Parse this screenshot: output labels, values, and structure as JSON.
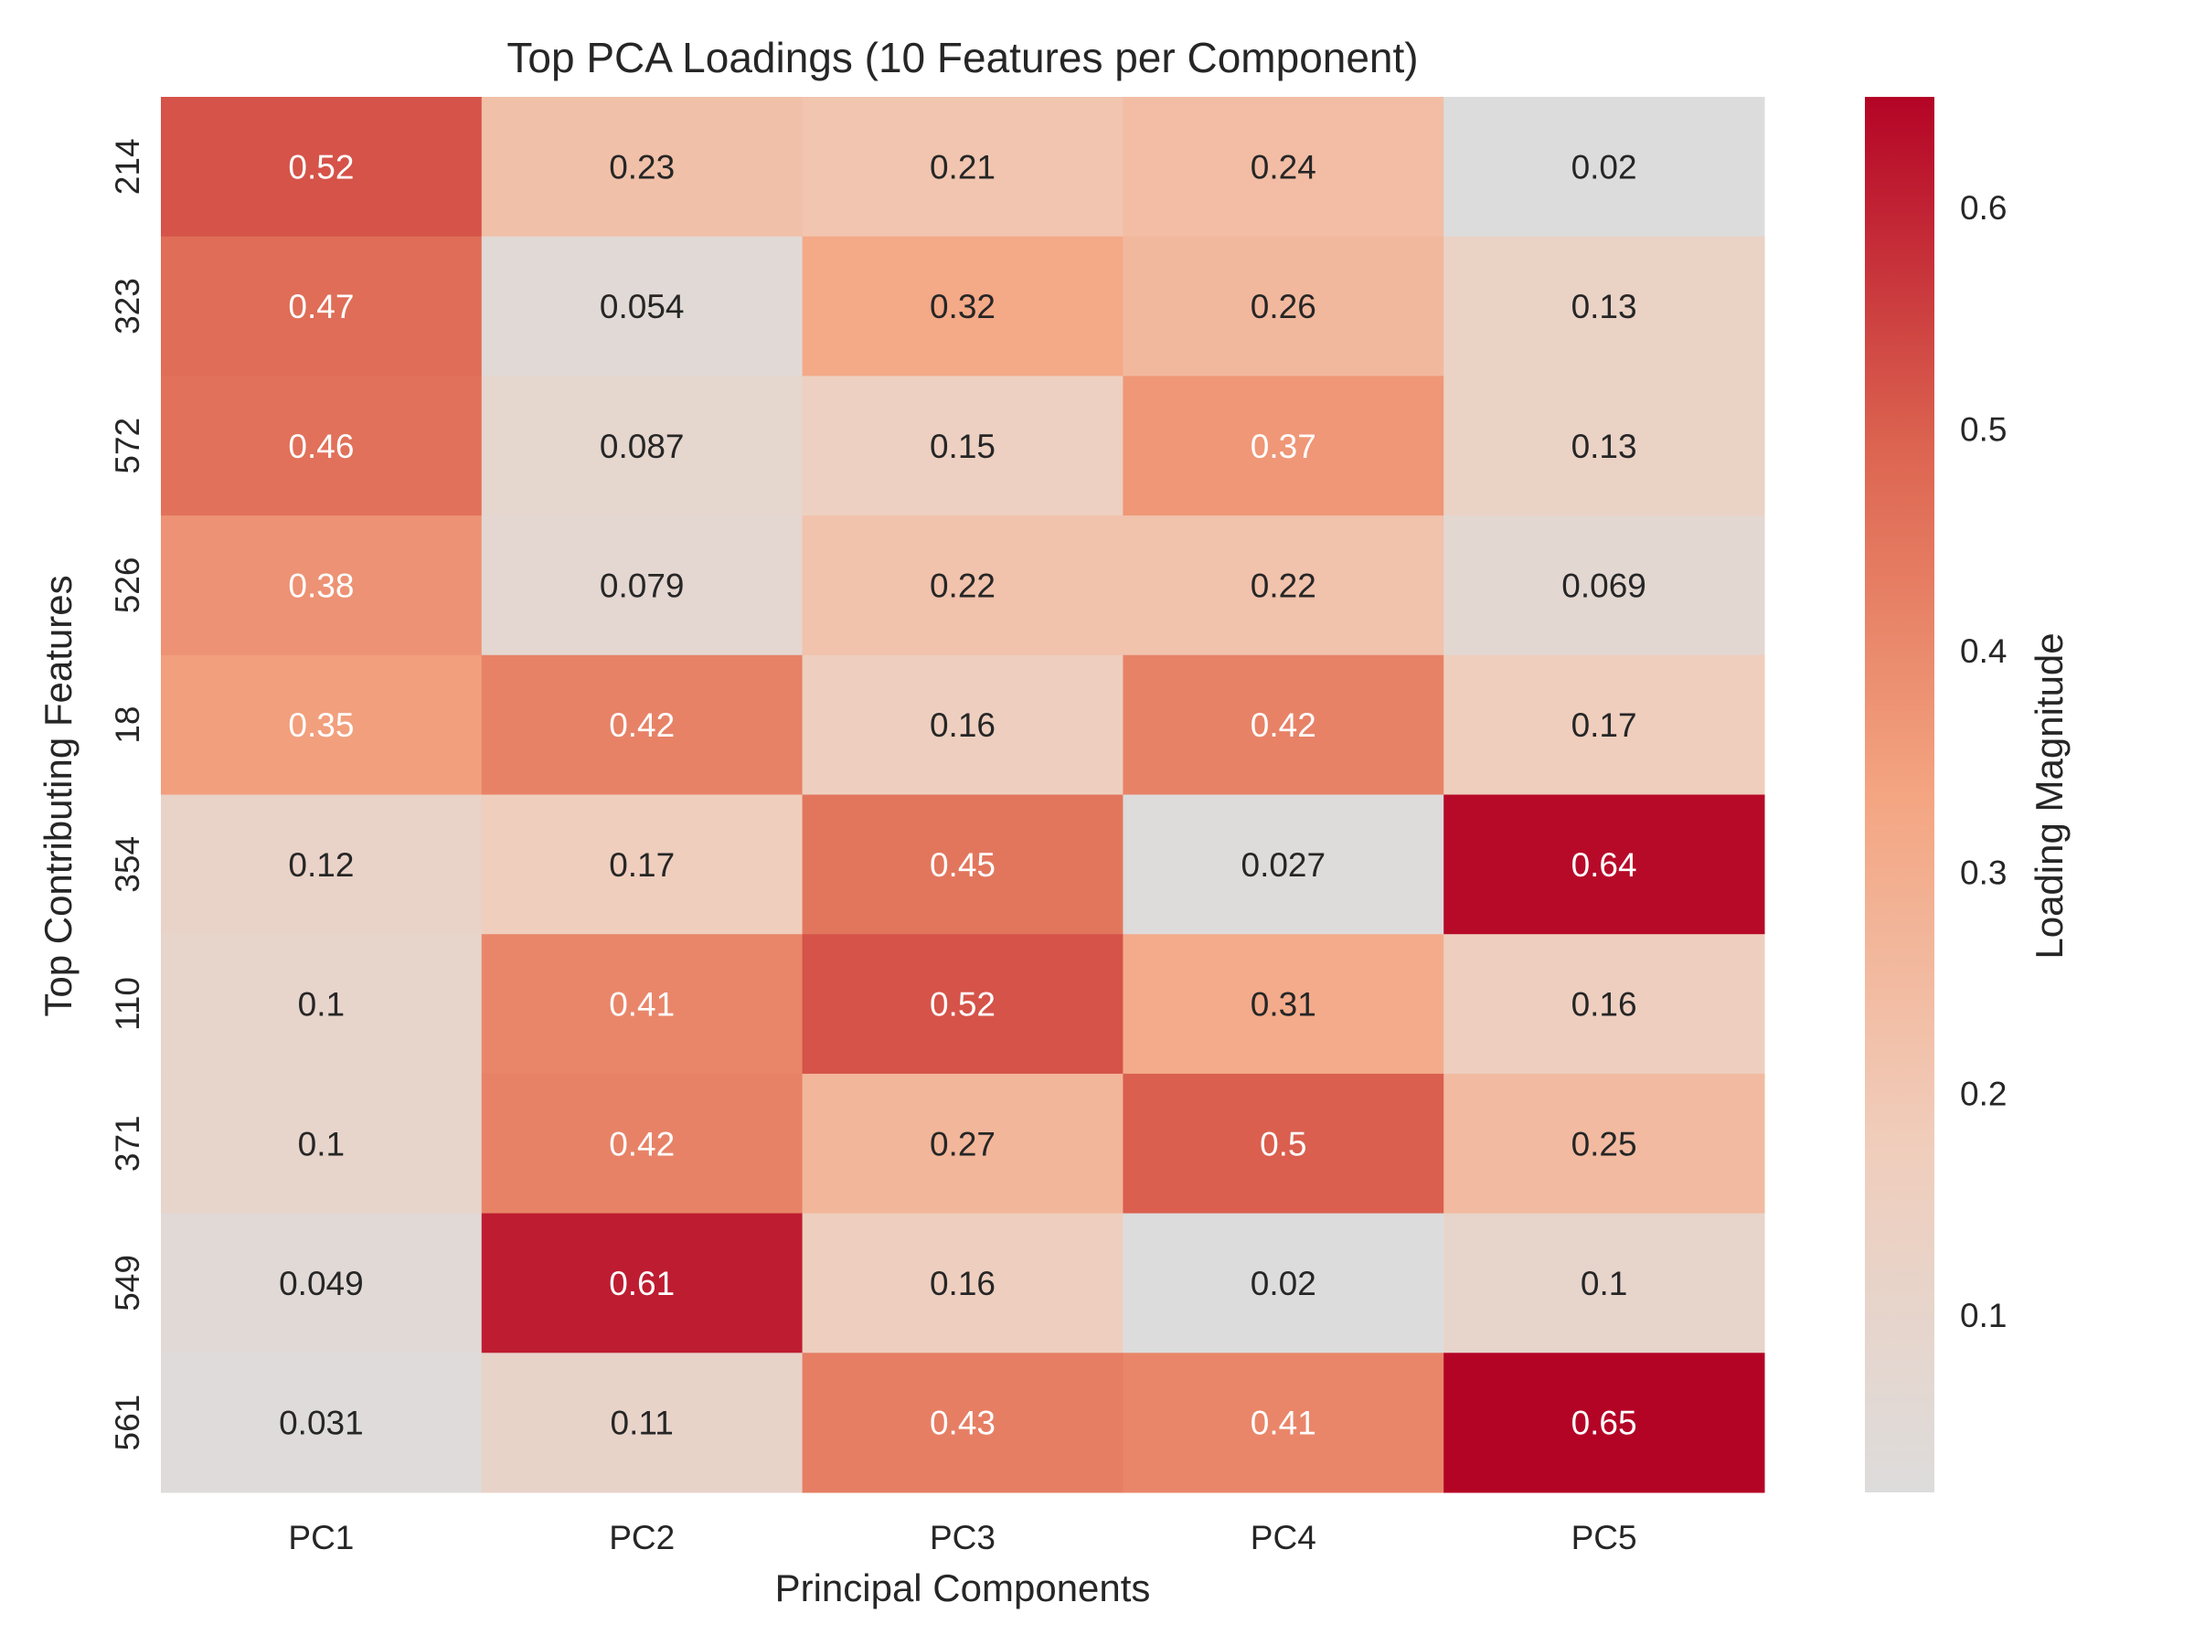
{
  "chart_data": {
    "type": "heatmap",
    "title": "Top PCA Loadings (10 Features per Component)",
    "xlabel": "Principal Components",
    "ylabel": "Top Contributing Features",
    "colorbar_label": "Loading Magnitude",
    "columns": [
      "PC1",
      "PC2",
      "PC3",
      "PC4",
      "PC5"
    ],
    "rows": [
      "214",
      "323",
      "572",
      "526",
      "18",
      "354",
      "110",
      "371",
      "549",
      "561"
    ],
    "values": [
      [
        0.52,
        0.23,
        0.21,
        0.24,
        0.02
      ],
      [
        0.47,
        0.054,
        0.32,
        0.26,
        0.13
      ],
      [
        0.46,
        0.087,
        0.15,
        0.37,
        0.13
      ],
      [
        0.38,
        0.079,
        0.22,
        0.22,
        0.069
      ],
      [
        0.35,
        0.42,
        0.16,
        0.42,
        0.17
      ],
      [
        0.12,
        0.17,
        0.45,
        0.027,
        0.64
      ],
      [
        0.1,
        0.41,
        0.52,
        0.31,
        0.16
      ],
      [
        0.1,
        0.42,
        0.27,
        0.5,
        0.25
      ],
      [
        0.049,
        0.61,
        0.16,
        0.02,
        0.1
      ],
      [
        0.031,
        0.11,
        0.43,
        0.41,
        0.65
      ]
    ],
    "value_labels": [
      [
        "0.52",
        "0.23",
        "0.21",
        "0.24",
        "0.02"
      ],
      [
        "0.47",
        "0.054",
        "0.32",
        "0.26",
        "0.13"
      ],
      [
        "0.46",
        "0.087",
        "0.15",
        "0.37",
        "0.13"
      ],
      [
        "0.38",
        "0.079",
        "0.22",
        "0.22",
        "0.069"
      ],
      [
        "0.35",
        "0.42",
        "0.16",
        "0.42",
        "0.17"
      ],
      [
        "0.12",
        "0.17",
        "0.45",
        "0.027",
        "0.64"
      ],
      [
        "0.1",
        "0.41",
        "0.52",
        "0.31",
        "0.16"
      ],
      [
        "0.1",
        "0.42",
        "0.27",
        "0.5",
        "0.25"
      ],
      [
        "0.049",
        "0.61",
        "0.16",
        "0.02",
        "0.1"
      ],
      [
        "0.031",
        "0.11",
        "0.43",
        "0.41",
        "0.65"
      ]
    ],
    "color_range": [
      0.02,
      0.65
    ],
    "colorbar_ticks": [
      "0.1",
      "0.2",
      "0.3",
      "0.4",
      "0.5",
      "0.6"
    ],
    "colormap": {
      "low": "#dddcdc",
      "mid": "#f4a582",
      "high": "#b40426"
    },
    "annotation_colors": {
      "light": "#ffffff",
      "dark": "#262626"
    },
    "grid": false
  }
}
